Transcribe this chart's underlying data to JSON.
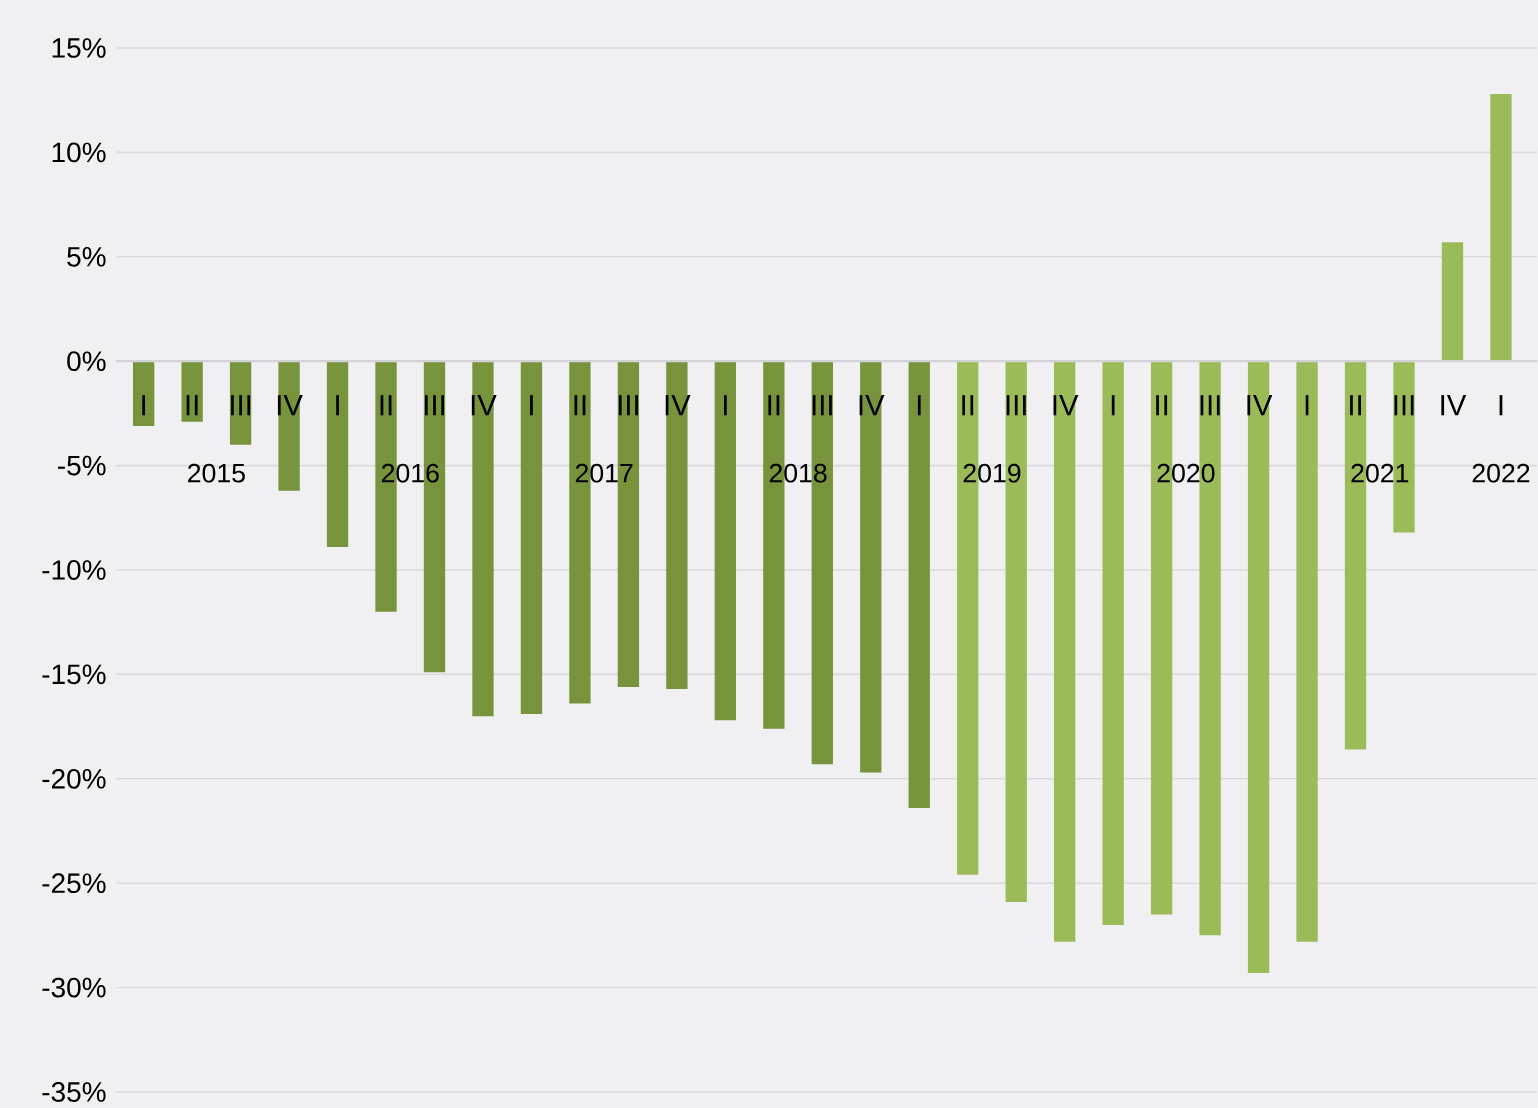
{
  "chart_data": {
    "type": "bar",
    "categories": [
      "I",
      "II",
      "III",
      "IV",
      "I",
      "II",
      "III",
      "IV",
      "I",
      "II",
      "III",
      "IV",
      "I",
      "II",
      "III",
      "IV",
      "I",
      "II",
      "III",
      "IV",
      "I",
      "II",
      "III",
      "IV",
      "I",
      "II",
      "III",
      "IV",
      "I"
    ],
    "values": [
      -3.1,
      -2.9,
      -4.0,
      -6.2,
      -8.9,
      -12.0,
      -14.9,
      -17.0,
      -16.9,
      -16.4,
      -15.6,
      -15.7,
      -17.2,
      -17.6,
      -19.3,
      -19.7,
      -21.4,
      -24.6,
      -25.9,
      -27.8,
      -27.0,
      -26.5,
      -27.5,
      -29.3,
      -27.8,
      -18.6,
      -8.2,
      5.7,
      12.8
    ],
    "colors": [
      "#77933c",
      "#77933c",
      "#77933c",
      "#77933c",
      "#77933c",
      "#77933c",
      "#77933c",
      "#77933c",
      "#77933c",
      "#77933c",
      "#77933c",
      "#77933c",
      "#77933c",
      "#77933c",
      "#77933c",
      "#77933c",
      "#77933c",
      "#9bbb59",
      "#9bbb59",
      "#9bbb59",
      "#9bbb59",
      "#9bbb59",
      "#9bbb59",
      "#9bbb59",
      "#9bbb59",
      "#9bbb59",
      "#9bbb59",
      "#9bbb59",
      "#9bbb59"
    ],
    "annotations": [
      "2015",
      "2016",
      "2017",
      "2018",
      "2019",
      "2020",
      "2021",
      "2022"
    ],
    "ylim": [
      -35,
      15
    ],
    "yticks": [
      {
        "value": 15,
        "label": "15%"
      },
      {
        "value": 10,
        "label": "10%"
      },
      {
        "value": 5,
        "label": "5%"
      },
      {
        "value": 0,
        "label": "0%"
      },
      {
        "value": -5,
        "label": "-5%"
      },
      {
        "value": -10,
        "label": "-10%"
      },
      {
        "value": -15,
        "label": "-15%"
      },
      {
        "value": -20,
        "label": "-20%"
      },
      {
        "value": -25,
        "label": "-25%"
      },
      {
        "value": -30,
        "label": "-30%"
      },
      {
        "value": -35,
        "label": "-35%"
      }
    ],
    "grid": "y"
  }
}
